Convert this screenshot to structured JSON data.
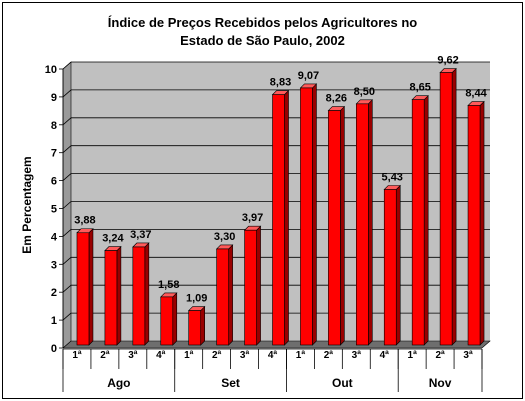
{
  "chart_data": {
    "type": "bar",
    "title_line1": "Índice de Preços Recebidos pelos Agricultores no",
    "title_line2": "Estado de São Paulo, 2002",
    "ylabel": "Em Percentagem",
    "ylim": [
      0,
      10
    ],
    "yticks": [
      "0",
      "1",
      "2",
      "3",
      "4",
      "5",
      "6",
      "7",
      "8",
      "9",
      "10"
    ],
    "grid": true,
    "categories": [
      "1ª",
      "2ª",
      "3ª",
      "4ª",
      "1ª",
      "2ª",
      "3ª",
      "4ª",
      "1ª",
      "2ª",
      "3ª",
      "4ª",
      "1ª",
      "2ª",
      "3ª"
    ],
    "groups": [
      {
        "label": "Ago",
        "count": 4
      },
      {
        "label": "Set",
        "count": 4
      },
      {
        "label": "Out",
        "count": 4
      },
      {
        "label": "Nov",
        "count": 3
      }
    ],
    "values": [
      3.88,
      3.24,
      3.37,
      1.58,
      1.09,
      3.3,
      3.97,
      8.83,
      9.07,
      8.26,
      8.5,
      5.43,
      8.65,
      9.62,
      8.44
    ],
    "value_labels": [
      "3,88",
      "3,24",
      "3,37",
      "1,58",
      "1,09",
      "3,30",
      "3,97",
      "8,83",
      "9,07",
      "8,26",
      "8,50",
      "5,43",
      "8,65",
      "9,62",
      "8,44"
    ],
    "colors": {
      "bar": "#ff0000",
      "bar_side": "#990000",
      "bar_top": "#ff5a5a",
      "wall": "#c0c0c0",
      "floor": "#6e6e6e"
    }
  }
}
